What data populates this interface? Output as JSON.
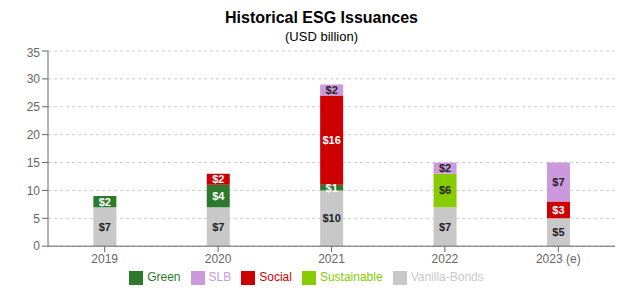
{
  "chart_data": {
    "type": "bar",
    "title": "Historical ESG Issuances",
    "subtitle": "(USD billion)",
    "categories": [
      "2019",
      "2020",
      "2021",
      "2022",
      "2023 (e)"
    ],
    "stacked": true,
    "data_labels": true,
    "series": [
      {
        "name": "Vanilla-Bonds",
        "color": "#c8c8c8",
        "values": [
          7,
          7,
          10,
          7,
          5
        ],
        "value_labels": [
          "$7",
          "$7",
          "$10",
          "$7",
          "$5"
        ]
      },
      {
        "name": "Green",
        "color": "#2d7a2d",
        "values": [
          2,
          4,
          1,
          0,
          0
        ],
        "value_labels": [
          "$2",
          "$4",
          "$1",
          null,
          null
        ]
      },
      {
        "name": "Social",
        "color": "#cc0000",
        "values": [
          0,
          2,
          16,
          0,
          3
        ],
        "value_labels": [
          null,
          "$2",
          "$16",
          null,
          "$3"
        ]
      },
      {
        "name": "Sustainable",
        "color": "#88cc00",
        "values": [
          0,
          0,
          0,
          6,
          0
        ],
        "value_labels": [
          null,
          null,
          null,
          "$6",
          null
        ]
      },
      {
        "name": "SLB",
        "color": "#cc99dd",
        "values": [
          0,
          0,
          2,
          2,
          7
        ],
        "value_labels": [
          null,
          null,
          "$2",
          "$2",
          "$7"
        ]
      }
    ],
    "ylim": [
      0,
      35
    ],
    "yticks": [
      0,
      5,
      10,
      15,
      20,
      25,
      30,
      35
    ],
    "grid": true,
    "legend": "bottom"
  }
}
